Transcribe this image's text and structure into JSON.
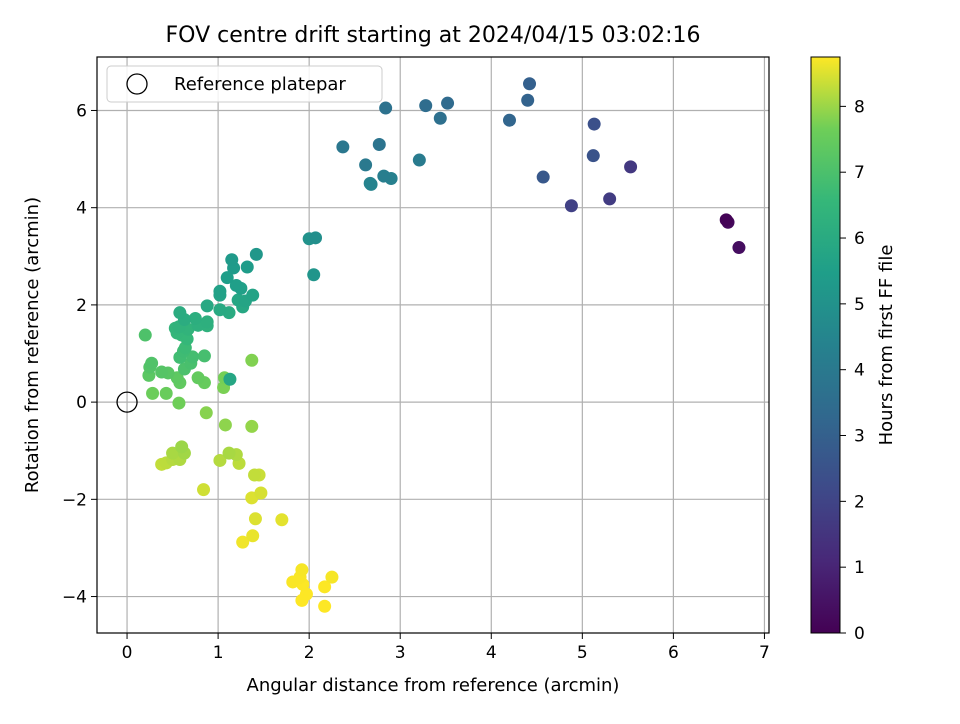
{
  "chart_data": {
    "type": "scatter",
    "title": "FOV centre drift starting at 2024/04/15 03:02:16",
    "xlabel": "Angular distance from reference (arcmin)",
    "ylabel": "Rotation from reference (arcmin)",
    "xlim": [
      -0.33,
      7.05
    ],
    "ylim": [
      -4.75,
      7.1
    ],
    "x_ticks": [
      0,
      1,
      2,
      3,
      4,
      5,
      6,
      7
    ],
    "y_ticks": [
      -4,
      -2,
      0,
      2,
      4,
      6
    ],
    "x_tick_labels": [
      "0",
      "1",
      "2",
      "3",
      "4",
      "5",
      "6",
      "7"
    ],
    "y_tick_labels": [
      "−4",
      "−2",
      "0",
      "2",
      "4",
      "6"
    ],
    "grid": true,
    "legend": {
      "position": "upper-left",
      "entries": [
        {
          "label": "Reference platepar",
          "marker": "open-circle",
          "x": 0,
          "y": 0
        }
      ]
    },
    "colorbar": {
      "label": "Hours from first FF file",
      "colormap": "viridis",
      "range": [
        0,
        8.75
      ],
      "ticks": [
        0,
        1,
        2,
        3,
        4,
        5,
        6,
        7,
        8
      ],
      "tick_labels": [
        "0",
        "1",
        "2",
        "3",
        "4",
        "5",
        "6",
        "7",
        "8"
      ]
    },
    "series": [
      {
        "points": [
          [
            6.58,
            3.75,
            0.05
          ],
          [
            6.6,
            3.7,
            0.2
          ],
          [
            6.72,
            3.18,
            0.35
          ],
          [
            5.53,
            4.84,
            1.6
          ],
          [
            5.3,
            4.18,
            1.75
          ],
          [
            4.88,
            4.04,
            1.9
          ],
          [
            5.13,
            5.72,
            2.4
          ],
          [
            5.12,
            5.07,
            2.5
          ],
          [
            4.57,
            4.63,
            2.7
          ],
          [
            4.42,
            6.55,
            3.0
          ],
          [
            4.4,
            6.21,
            3.1
          ],
          [
            4.2,
            5.8,
            3.2
          ],
          [
            3.52,
            6.15,
            3.4
          ],
          [
            3.28,
            6.1,
            3.5
          ],
          [
            3.44,
            5.84,
            3.6
          ],
          [
            2.84,
            6.05,
            3.7
          ],
          [
            2.77,
            5.3,
            3.8
          ],
          [
            2.37,
            5.25,
            3.9
          ],
          [
            2.62,
            4.88,
            4.0
          ],
          [
            3.21,
            4.98,
            4.1
          ],
          [
            2.82,
            4.65,
            4.2
          ],
          [
            2.9,
            4.6,
            4.3
          ],
          [
            2.67,
            4.5,
            4.4
          ],
          [
            2.68,
            4.48,
            4.45
          ],
          [
            2.07,
            3.38,
            4.9
          ],
          [
            2.0,
            3.36,
            5.0
          ],
          [
            2.05,
            2.62,
            5.1
          ],
          [
            1.42,
            3.04,
            5.2
          ],
          [
            1.15,
            2.93,
            5.3
          ],
          [
            1.17,
            2.76,
            5.35
          ],
          [
            1.32,
            2.78,
            5.4
          ],
          [
            1.1,
            2.56,
            5.45
          ],
          [
            1.2,
            2.4,
            5.5
          ],
          [
            1.25,
            2.34,
            5.55
          ],
          [
            1.02,
            2.28,
            5.6
          ],
          [
            1.02,
            2.2,
            5.65
          ],
          [
            1.38,
            2.2,
            5.7
          ],
          [
            1.3,
            2.08,
            5.75
          ],
          [
            1.22,
            2.1,
            5.8
          ],
          [
            1.27,
            1.96,
            5.85
          ],
          [
            0.88,
            1.98,
            5.9
          ],
          [
            1.02,
            1.9,
            5.95
          ],
          [
            1.12,
            1.84,
            6.0
          ],
          [
            0.58,
            1.84,
            6.05
          ],
          [
            0.63,
            1.7,
            6.1
          ],
          [
            0.75,
            1.72,
            6.15
          ],
          [
            0.88,
            1.65,
            6.2
          ],
          [
            0.78,
            1.58,
            6.25
          ],
          [
            0.88,
            1.57,
            6.3
          ],
          [
            0.57,
            1.55,
            6.35
          ],
          [
            0.67,
            1.5,
            6.4
          ],
          [
            0.53,
            1.52,
            6.45
          ],
          [
            0.55,
            1.42,
            6.5
          ],
          [
            0.66,
            1.3,
            6.55
          ],
          [
            0.6,
            1.38,
            6.6
          ],
          [
            1.13,
            0.47,
            5.8
          ],
          [
            0.2,
            1.38,
            7.05
          ],
          [
            0.64,
            1.12,
            6.7
          ],
          [
            0.62,
            1.05,
            6.75
          ],
          [
            0.58,
            0.92,
            6.8
          ],
          [
            0.72,
            0.93,
            6.85
          ],
          [
            0.85,
            0.95,
            6.9
          ],
          [
            0.7,
            0.8,
            6.95
          ],
          [
            0.63,
            0.68,
            7.0
          ],
          [
            0.27,
            0.8,
            7.1
          ],
          [
            0.25,
            0.72,
            7.15
          ],
          [
            0.38,
            0.62,
            7.2
          ],
          [
            0.45,
            0.6,
            7.25
          ],
          [
            0.24,
            0.55,
            7.3
          ],
          [
            0.55,
            0.5,
            7.35
          ],
          [
            0.58,
            0.4,
            7.4
          ],
          [
            0.78,
            0.5,
            7.45
          ],
          [
            0.85,
            0.4,
            7.5
          ],
          [
            0.43,
            0.18,
            7.55
          ],
          [
            0.28,
            0.18,
            7.6
          ],
          [
            0.57,
            -0.02,
            7.65
          ],
          [
            1.07,
            0.5,
            7.7
          ],
          [
            1.06,
            0.3,
            7.75
          ],
          [
            1.37,
            0.86,
            7.8
          ],
          [
            0.87,
            -0.22,
            7.85
          ],
          [
            1.08,
            -0.47,
            7.9
          ],
          [
            1.37,
            -0.5,
            7.95
          ],
          [
            0.6,
            -0.92,
            8.0
          ],
          [
            0.63,
            -1.05,
            8.05
          ],
          [
            0.5,
            -1.05,
            8.1
          ],
          [
            0.58,
            -1.18,
            8.15
          ],
          [
            0.5,
            -1.18,
            8.2
          ],
          [
            0.43,
            -1.25,
            8.25
          ],
          [
            0.38,
            -1.28,
            8.3
          ],
          [
            1.12,
            -1.05,
            8.1
          ],
          [
            1.2,
            -1.08,
            8.15
          ],
          [
            1.02,
            -1.2,
            8.2
          ],
          [
            1.23,
            -1.26,
            8.25
          ],
          [
            1.4,
            -1.5,
            8.3
          ],
          [
            1.45,
            -1.5,
            8.35
          ],
          [
            0.84,
            -1.8,
            8.4
          ],
          [
            1.47,
            -1.87,
            8.45
          ],
          [
            1.37,
            -1.97,
            8.5
          ],
          [
            1.41,
            -2.4,
            8.5
          ],
          [
            1.7,
            -2.42,
            8.55
          ],
          [
            1.38,
            -2.75,
            8.6
          ],
          [
            1.27,
            -2.88,
            8.65
          ],
          [
            1.92,
            -3.45,
            8.7
          ],
          [
            2.25,
            -3.6,
            8.7
          ],
          [
            1.9,
            -3.6,
            8.72
          ],
          [
            1.82,
            -3.7,
            8.72
          ],
          [
            1.93,
            -3.75,
            8.74
          ],
          [
            2.17,
            -3.8,
            8.74
          ],
          [
            1.97,
            -3.95,
            8.75
          ],
          [
            1.92,
            -4.08,
            8.75
          ],
          [
            2.17,
            -4.2,
            8.75
          ]
        ]
      }
    ]
  }
}
